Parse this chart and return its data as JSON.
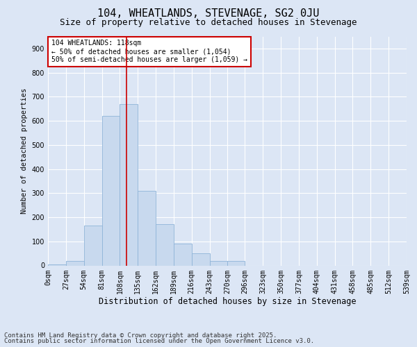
{
  "title1": "104, WHEATLANDS, STEVENAGE, SG2 0JU",
  "title2": "Size of property relative to detached houses in Stevenage",
  "xlabel": "Distribution of detached houses by size in Stevenage",
  "ylabel": "Number of detached properties",
  "bar_color": "#c8d9ee",
  "bar_edge_color": "#8fb4d8",
  "vline_color": "#cc0000",
  "vline_x": 118,
  "bin_edges": [
    0,
    27,
    54,
    81,
    108,
    135,
    162,
    189,
    216,
    243,
    270,
    296,
    323,
    350,
    377,
    404,
    431,
    458,
    485,
    512,
    539
  ],
  "bar_heights": [
    5,
    18,
    165,
    620,
    670,
    310,
    170,
    90,
    50,
    18,
    18,
    0,
    0,
    0,
    0,
    0,
    0,
    0,
    0,
    0
  ],
  "ylim": [
    0,
    950
  ],
  "yticks": [
    0,
    100,
    200,
    300,
    400,
    500,
    600,
    700,
    800,
    900
  ],
  "annotation_text": "104 WHEATLANDS: 118sqm\n← 50% of detached houses are smaller (1,054)\n50% of semi-detached houses are larger (1,059) →",
  "annotation_box_color": "#ffffff",
  "annotation_box_edge": "#cc0000",
  "background_color": "#dce6f5",
  "plot_bg_color": "#dce6f5",
  "grid_color": "#ffffff",
  "footer1": "Contains HM Land Registry data © Crown copyright and database right 2025.",
  "footer2": "Contains public sector information licensed under the Open Government Licence v3.0.",
  "title1_fontsize": 11,
  "title2_fontsize": 9,
  "xlabel_fontsize": 8.5,
  "ylabel_fontsize": 7.5,
  "tick_fontsize": 7,
  "annotation_fontsize": 7,
  "footer_fontsize": 6.5
}
